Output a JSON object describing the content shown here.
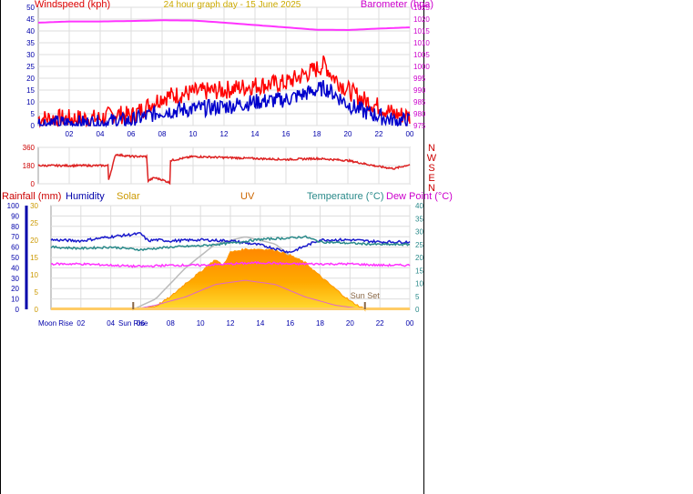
{
  "title": "24 hour graph day - 15 June 2025",
  "colors": {
    "wind": "#ff0000",
    "gust": "#0000cc",
    "barometer": "#ff33ff",
    "direction": "#dd2222",
    "rainfall_axis": "#0000aa",
    "humidity": "#1a1acc",
    "solar": "#cc9900",
    "uv": "#cc6600",
    "temperature": "#2a8a8a",
    "dew_point": "#ff33ff",
    "grid": "#dddddd",
    "axis_text": "#0000aa"
  },
  "chart_data": [
    {
      "type": "line",
      "title": "24 hour graph day - 15 June 2025",
      "left_label": "Windspeed (kph)",
      "right_label": "Barometer (hpa)",
      "x_ticks": [
        "02",
        "04",
        "06",
        "08",
        "10",
        "12",
        "14",
        "16",
        "18",
        "20",
        "22",
        "00"
      ],
      "y_left_ticks": [
        "0",
        "5",
        "10",
        "15",
        "20",
        "25",
        "30",
        "35",
        "40",
        "45",
        "50"
      ],
      "y_right_ticks": [
        "975",
        "980",
        "985",
        "990",
        "995",
        "1000",
        "1005",
        "1010",
        "1015",
        "1020",
        "1025"
      ],
      "ylim_left": [
        0,
        50
      ],
      "ylim_right": [
        975,
        1025
      ],
      "x_range_hours": [
        0,
        24
      ],
      "grid": true,
      "series": [
        {
          "key": "wind",
          "x": [
            0,
            2,
            4,
            5,
            6,
            7,
            8,
            10,
            12,
            14,
            16,
            17,
            18,
            18.5,
            19,
            20,
            21,
            22,
            23,
            24
          ],
          "values": [
            3,
            3,
            3,
            5,
            4,
            8,
            12,
            14,
            15,
            17,
            18,
            21,
            24,
            26,
            21,
            15,
            11,
            8,
            5,
            4
          ]
        },
        {
          "key": "gust",
          "x": [
            0,
            2,
            4,
            5,
            6,
            7,
            8,
            10,
            12,
            14,
            16,
            17,
            18,
            18.5,
            19,
            20,
            21,
            22,
            23,
            24
          ],
          "values": [
            1,
            1,
            1,
            2,
            2,
            4,
            6,
            7,
            8,
            10,
            11,
            13,
            15,
            16,
            14,
            9,
            6,
            4,
            2,
            2
          ]
        },
        {
          "key": "barometer",
          "x": [
            0,
            2,
            4,
            6,
            8,
            10,
            12,
            14,
            16,
            18,
            20,
            22,
            24
          ],
          "values": [
            1018.5,
            1019,
            1019,
            1019.2,
            1019.5,
            1019.4,
            1018.5,
            1017.5,
            1016.5,
            1015.5,
            1015.4,
            1016,
            1016.5
          ]
        }
      ]
    },
    {
      "type": "line",
      "right_label": "N W S E N",
      "y_ticks": [
        "0",
        "180",
        "360"
      ],
      "ylim": [
        0,
        360
      ],
      "x_range_hours": [
        0,
        24
      ],
      "series": [
        {
          "key": "direction",
          "x": [
            0,
            4.5,
            4.55,
            5,
            6,
            7,
            7.1,
            7.5,
            8,
            8.5,
            8.55,
            10,
            12,
            14,
            16,
            18,
            19,
            20,
            21,
            22,
            23,
            24
          ],
          "values": [
            180,
            180,
            40,
            290,
            270,
            270,
            30,
            60,
            40,
            10,
            230,
            270,
            260,
            250,
            240,
            250,
            240,
            230,
            200,
            170,
            150,
            190
          ]
        }
      ]
    },
    {
      "type": "area",
      "legend": [
        "Rainfall (mm)",
        "Humidity",
        "Solar",
        "UV",
        "Temperature (°C)",
        "Dew Point (°C)"
      ],
      "x_ticks": [
        "02",
        "04",
        "06",
        "08",
        "10",
        "12",
        "14",
        "16",
        "18",
        "20",
        "22",
        "00"
      ],
      "y_outer_left_ticks": [
        "0",
        "10",
        "20",
        "30",
        "40",
        "50",
        "60",
        "70",
        "80",
        "90",
        "100"
      ],
      "y_inner_left_ticks": [
        "0",
        "5",
        "10",
        "15",
        "20",
        "25",
        "30"
      ],
      "y_right_ticks": [
        "0",
        "5",
        "10",
        "15",
        "20",
        "25",
        "30",
        "35",
        "40"
      ],
      "ylim_humidity": [
        0,
        100
      ],
      "ylim_temperature": [
        0,
        40
      ],
      "x_range_hours": [
        0,
        24
      ],
      "annotations": {
        "moon_rise": "Moon Rise",
        "sun_rise": "Sun Rise",
        "sun_set": "Sun Set"
      },
      "events_hours": {
        "sun_rise": 5.5,
        "sun_set": 21.0
      },
      "series": [
        {
          "key": "humidity",
          "x": [
            0,
            2,
            4,
            6,
            6.5,
            7,
            8,
            10,
            12,
            14,
            16,
            18,
            20,
            22,
            24
          ],
          "values": [
            67,
            66,
            70,
            73,
            66,
            67,
            66,
            67,
            66,
            62,
            55,
            67,
            67,
            65,
            65
          ]
        },
        {
          "key": "solar_clear_sky",
          "x": [
            5.5,
            7,
            9,
            11,
            13,
            15,
            17,
            19,
            21
          ],
          "values": [
            0,
            10,
            40,
            63,
            70,
            63,
            40,
            10,
            0
          ]
        },
        {
          "key": "solar",
          "x": [
            5.5,
            7,
            8,
            9,
            10,
            11,
            11.5,
            12,
            13,
            14,
            15,
            16,
            17,
            18,
            19,
            20,
            21
          ],
          "values": [
            0,
            3,
            12,
            25,
            36,
            48,
            42,
            55,
            58,
            58,
            57,
            52,
            45,
            32,
            20,
            8,
            0
          ]
        },
        {
          "key": "uv",
          "x": [
            5.5,
            7,
            9,
            11,
            13,
            15,
            17,
            19,
            21
          ],
          "values": [
            0,
            1,
            3,
            6,
            7,
            6,
            3,
            1,
            0
          ]
        },
        {
          "key": "temperature",
          "x": [
            0,
            2,
            4,
            6,
            8,
            10,
            12,
            14,
            16,
            17,
            18,
            20,
            22,
            24
          ],
          "values": [
            24,
            23.5,
            24,
            23,
            24,
            24.5,
            25.5,
            27,
            27.5,
            28,
            26,
            25.5,
            25,
            25
          ]
        },
        {
          "key": "dew_point",
          "x": [
            0,
            2,
            4,
            6,
            8,
            10,
            12,
            14,
            16,
            18,
            20,
            22,
            24
          ],
          "values": [
            17.5,
            17.5,
            17,
            16.5,
            17,
            17,
            17.5,
            18,
            17.5,
            17.5,
            17.5,
            17,
            17
          ]
        }
      ]
    }
  ]
}
